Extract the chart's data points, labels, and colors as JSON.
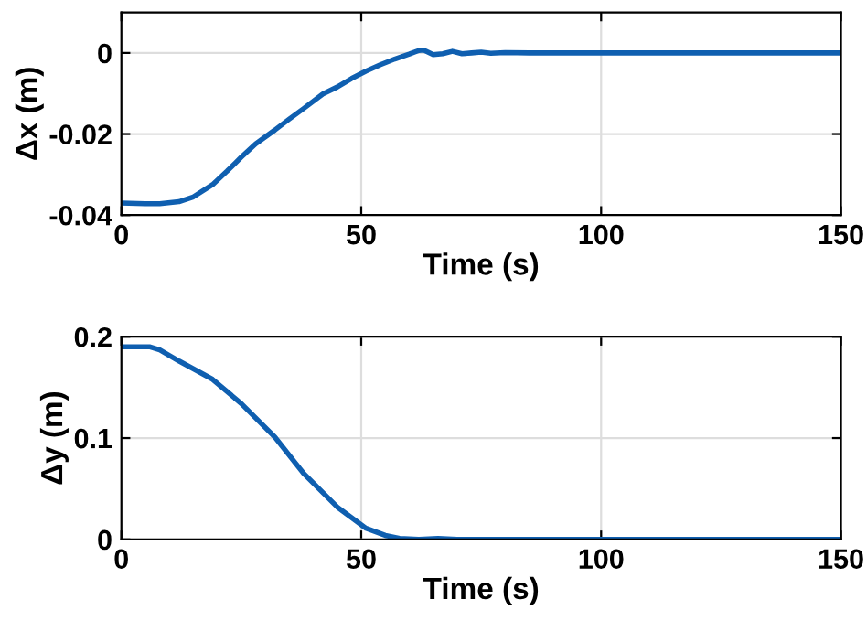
{
  "chart_data": [
    {
      "type": "line",
      "xlabel": "Time (s)",
      "ylabel": "Δx (m)",
      "xlim": [
        0,
        150
      ],
      "xticks": [
        0,
        50,
        100,
        150
      ],
      "ylim": [
        -0.04,
        0.01
      ],
      "yticks": [
        -0.04,
        -0.02,
        0
      ],
      "grid": true,
      "series": [
        {
          "color": "#0f5fb0",
          "x": [
            0,
            5,
            8,
            12,
            15,
            19,
            22,
            25,
            28,
            32,
            35,
            38,
            42,
            45,
            48,
            51,
            54,
            57,
            60,
            62,
            63,
            65,
            67,
            69,
            71,
            73,
            75,
            77,
            80,
            85,
            100,
            150
          ],
          "values": [
            -0.037,
            -0.0372,
            -0.0372,
            -0.0367,
            -0.0355,
            -0.0325,
            -0.0292,
            -0.0257,
            -0.0224,
            -0.019,
            -0.0163,
            -0.0137,
            -0.0101,
            -0.0084,
            -0.0063,
            -0.0045,
            -0.0029,
            -0.0015,
            -0.0003,
            0.0006,
            0.0007,
            -0.0004,
            -0.0002,
            0.0004,
            -0.0002,
            0,
            0.0002,
            -0.0001,
            0.0001,
            0,
            0,
            0
          ]
        }
      ]
    },
    {
      "type": "line",
      "xlabel": "Time (s)",
      "ylabel": "Δy (m)",
      "xlim": [
        0,
        150
      ],
      "xticks": [
        0,
        50,
        100,
        150
      ],
      "ylim": [
        0,
        0.2
      ],
      "yticks": [
        0,
        0.1,
        0.2
      ],
      "grid": true,
      "series": [
        {
          "color": "#0f5fb0",
          "x": [
            0,
            6,
            8,
            12,
            19,
            25,
            32,
            38,
            45,
            51,
            55,
            58,
            62,
            66,
            70,
            80,
            100,
            150
          ],
          "values": [
            0.19,
            0.19,
            0.187,
            0.176,
            0.158,
            0.134,
            0.101,
            0.065,
            0.032,
            0.011,
            0.004,
            0.001,
            0,
            0.001,
            0,
            0,
            0,
            0
          ]
        }
      ]
    }
  ]
}
